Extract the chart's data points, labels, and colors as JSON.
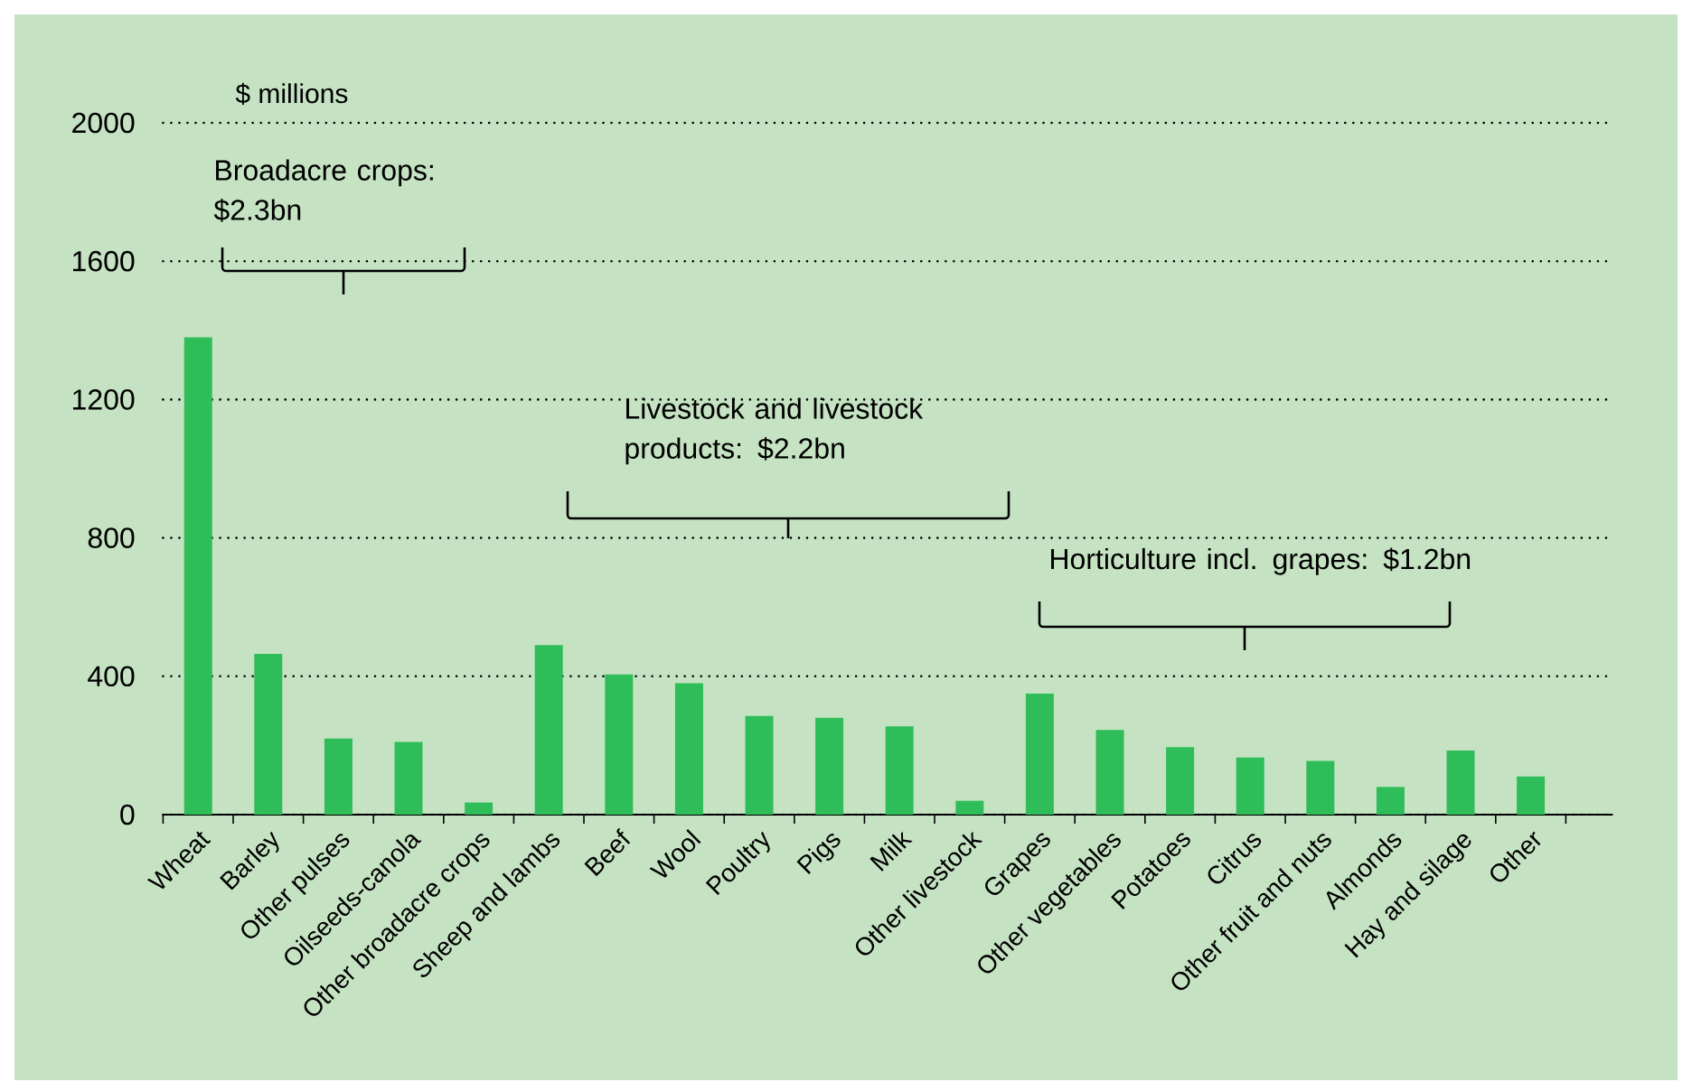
{
  "chart_data": {
    "type": "bar",
    "ylabel": "$ millions",
    "categories": [
      "Wheat",
      "Barley",
      "Other pulses",
      "Oilseeds-canola",
      "Other broadacre crops",
      "Sheep and lambs",
      "Beef",
      "Wool",
      "Poultry",
      "Pigs",
      "Milk",
      "Other livestock",
      "Grapes",
      "Other vegetables",
      "Potatoes",
      "Citrus",
      "Other fruit and nuts",
      "Almonds",
      "Hay and silage",
      "Other"
    ],
    "values": [
      1380,
      465,
      220,
      210,
      35,
      490,
      405,
      380,
      285,
      280,
      255,
      40,
      350,
      245,
      195,
      165,
      155,
      80,
      185,
      110
    ],
    "color": "#2fbd5a",
    "ylim": [
      0,
      2000
    ],
    "yticks": [
      0,
      400,
      800,
      1200,
      1600,
      2000
    ],
    "grid": "y",
    "annotations": [
      "Broadacre crops: $2.3bn",
      "Livestock and livestock products: $2.2bn",
      "Horticulture incl. grapes: $1.2bn"
    ]
  }
}
